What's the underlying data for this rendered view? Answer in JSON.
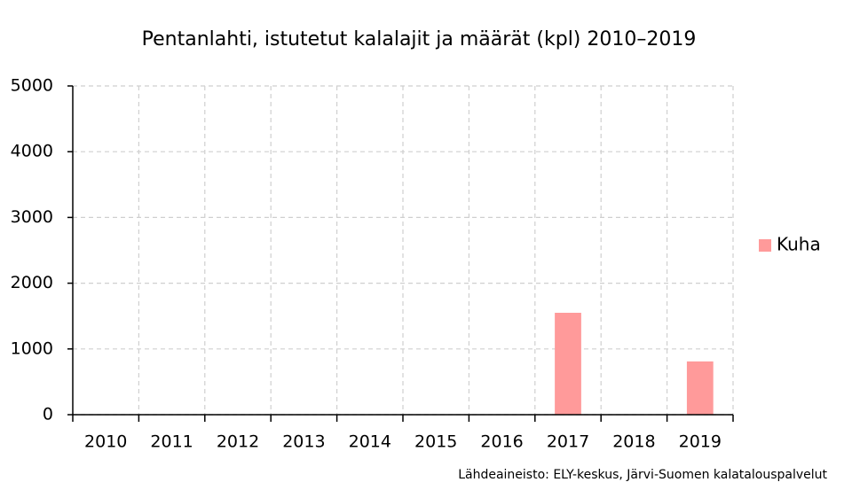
{
  "chart_data": {
    "type": "bar",
    "title": "Pentanlahti, istutetut kalalajit ja määrät (kpl) 2010–2019",
    "categories": [
      "2010",
      "2011",
      "2012",
      "2013",
      "2014",
      "2015",
      "2016",
      "2017",
      "2018",
      "2019"
    ],
    "series": [
      {
        "name": "Kuha",
        "color": "#ff9a9a",
        "values": [
          0,
          0,
          0,
          0,
          0,
          0,
          0,
          1550,
          0,
          810
        ]
      }
    ],
    "ylim": [
      0,
      5000
    ],
    "yticks": [
      0,
      1000,
      2000,
      3000,
      4000,
      5000
    ],
    "grid": true,
    "legend": "right",
    "source": "Lähdeaineisto: ELY-keskus, Järvi-Suomen kalatalouspalvelut"
  }
}
